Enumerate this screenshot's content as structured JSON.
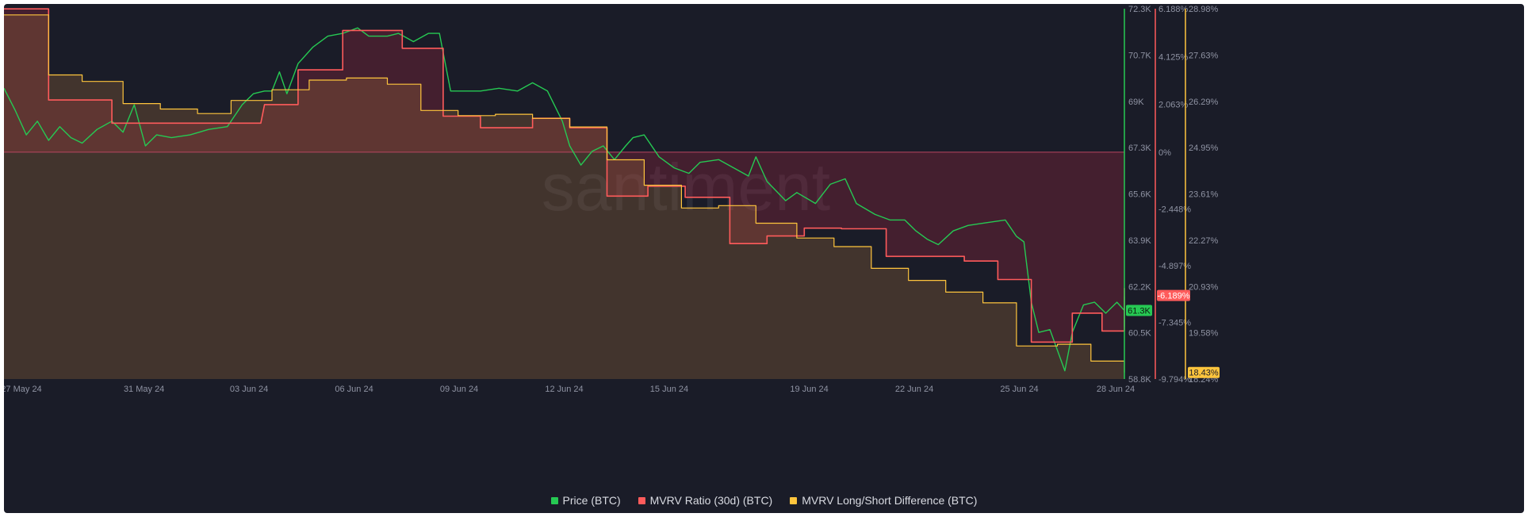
{
  "chart_data": {
    "type": "line",
    "watermark": "santiment",
    "x_tick_labels": [
      "27 May 24",
      "31 May 24",
      "03 Jun 24",
      "06 Jun 24",
      "09 Jun 24",
      "12 Jun 24",
      "15 Jun 24",
      "19 Jun 24",
      "22 Jun 24",
      "25 Jun 24",
      "28 Jun 24"
    ],
    "x_tick_days": [
      0,
      4,
      7,
      10,
      13,
      16,
      19,
      23,
      26,
      29,
      32
    ],
    "x_range_days": [
      0,
      30.1
    ],
    "axes": {
      "price": {
        "ticks": [
          "72.3K",
          "70.7K",
          "69K",
          "67.3K",
          "65.6K",
          "63.9K",
          "62.2K",
          "60.5K",
          "58.8K"
        ],
        "range": [
          58800,
          72300
        ],
        "color": "#26c953"
      },
      "mvrv": {
        "ticks": [
          "6.188%",
          "4.125%",
          "2.063%",
          "0%",
          "-2.448%",
          "-4.897%",
          "-7.345%",
          "-9.794%"
        ],
        "tick_values": [
          6.188,
          4.125,
          2.063,
          0,
          -2.448,
          -4.897,
          -7.345,
          -9.794
        ],
        "color": "#ff5b5b"
      },
      "ls": {
        "ticks": [
          "28.98%",
          "27.63%",
          "26.29%",
          "24.95%",
          "23.61%",
          "22.27%",
          "20.93%",
          "19.58%",
          "18.24%"
        ],
        "range": [
          18.24,
          28.98
        ],
        "color": "#ffc53d"
      }
    },
    "current": {
      "price": "61.3K",
      "mvrv": "-6.189%",
      "ls": "18.43%"
    },
    "series": [
      {
        "name": "Price (BTC)",
        "color": "#26c953",
        "key": "price",
        "points": [
          [
            0,
            69.4
          ],
          [
            0.3,
            68.6
          ],
          [
            0.6,
            67.7
          ],
          [
            0.9,
            68.2
          ],
          [
            1.2,
            67.5
          ],
          [
            1.5,
            68.0
          ],
          [
            1.8,
            67.6
          ],
          [
            2.1,
            67.4
          ],
          [
            2.5,
            67.9
          ],
          [
            2.9,
            68.2
          ],
          [
            3.2,
            67.8
          ],
          [
            3.5,
            68.8
          ],
          [
            3.8,
            67.3
          ],
          [
            4.1,
            67.7
          ],
          [
            4.5,
            67.6
          ],
          [
            5.0,
            67.7
          ],
          [
            5.5,
            67.9
          ],
          [
            6.0,
            68.0
          ],
          [
            6.4,
            68.8
          ],
          [
            6.7,
            69.2
          ],
          [
            7.0,
            69.3
          ],
          [
            7.2,
            69.3
          ],
          [
            7.4,
            70.0
          ],
          [
            7.6,
            69.2
          ],
          [
            7.9,
            70.3
          ],
          [
            8.3,
            70.9
          ],
          [
            8.7,
            71.3
          ],
          [
            9.1,
            71.4
          ],
          [
            9.5,
            71.6
          ],
          [
            9.8,
            71.3
          ],
          [
            10.3,
            71.3
          ],
          [
            10.6,
            71.4
          ],
          [
            11.0,
            71.1
          ],
          [
            11.4,
            71.4
          ],
          [
            11.7,
            71.4
          ],
          [
            12.0,
            69.3
          ],
          [
            12.4,
            69.3
          ],
          [
            12.8,
            69.3
          ],
          [
            13.3,
            69.4
          ],
          [
            13.8,
            69.3
          ],
          [
            14.2,
            69.6
          ],
          [
            14.6,
            69.3
          ],
          [
            15.0,
            68.2
          ],
          [
            15.2,
            67.3
          ],
          [
            15.5,
            66.6
          ],
          [
            15.8,
            67.1
          ],
          [
            16.1,
            67.3
          ],
          [
            16.4,
            66.8
          ],
          [
            16.7,
            67.3
          ],
          [
            16.9,
            67.6
          ],
          [
            17.2,
            67.7
          ],
          [
            17.6,
            66.9
          ],
          [
            18.0,
            66.5
          ],
          [
            18.4,
            66.3
          ],
          [
            18.7,
            66.7
          ],
          [
            19.2,
            66.8
          ],
          [
            19.6,
            66.5
          ],
          [
            20.0,
            66.2
          ],
          [
            20.2,
            66.9
          ],
          [
            20.5,
            66.0
          ],
          [
            21.0,
            65.3
          ],
          [
            21.3,
            65.6
          ],
          [
            21.8,
            65.2
          ],
          [
            22.2,
            65.9
          ],
          [
            22.6,
            66.1
          ],
          [
            22.9,
            65.2
          ],
          [
            23.4,
            64.8
          ],
          [
            23.8,
            64.6
          ],
          [
            24.2,
            64.6
          ],
          [
            24.5,
            64.2
          ],
          [
            24.8,
            63.9
          ],
          [
            25.1,
            63.7
          ],
          [
            25.5,
            64.2
          ],
          [
            25.9,
            64.4
          ],
          [
            26.4,
            64.5
          ],
          [
            26.9,
            64.6
          ],
          [
            27.2,
            64.0
          ],
          [
            27.4,
            63.8
          ],
          [
            27.6,
            61.6
          ],
          [
            27.8,
            60.5
          ],
          [
            28.1,
            60.6
          ],
          [
            28.5,
            59.1
          ],
          [
            28.7,
            60.5
          ],
          [
            29.0,
            61.5
          ],
          [
            29.3,
            61.6
          ],
          [
            29.6,
            61.2
          ],
          [
            29.9,
            61.6
          ],
          [
            30.1,
            61.3
          ],
          [
            30.4,
            61.2
          ],
          [
            30.7,
            61.4
          ],
          [
            31.0,
            61.2
          ],
          [
            31.2,
            60.7
          ],
          [
            31.5,
            61.3
          ],
          [
            31.8,
            61.8
          ],
          [
            32.1,
            61.5
          ],
          [
            32.4,
            61.3
          ],
          [
            32.6,
            61.2
          ],
          [
            32.9,
            61.3
          ],
          [
            33.0,
            61.3
          ]
        ]
      },
      {
        "name": "MVRV Ratio (30d) (BTC)",
        "color": "#ff5b5b",
        "key": "mvrv",
        "points": [
          [
            0,
            6.18
          ],
          [
            1.2,
            6.18
          ],
          [
            1.2,
            2.25
          ],
          [
            2.9,
            2.25
          ],
          [
            2.9,
            1.25
          ],
          [
            6.1,
            1.25
          ],
          [
            6.1,
            1.25
          ],
          [
            6.9,
            1.25
          ],
          [
            7.0,
            2.05
          ],
          [
            7.9,
            2.05
          ],
          [
            7.9,
            3.55
          ],
          [
            9.1,
            3.55
          ],
          [
            9.1,
            5.25
          ],
          [
            10.7,
            5.25
          ],
          [
            10.7,
            4.48
          ],
          [
            11.8,
            4.48
          ],
          [
            11.8,
            1.55
          ],
          [
            12.8,
            1.55
          ],
          [
            12.8,
            1.05
          ],
          [
            14.2,
            1.05
          ],
          [
            14.2,
            1.46
          ],
          [
            15.2,
            1.46
          ],
          [
            15.2,
            1.05
          ],
          [
            16.2,
            1.05
          ],
          [
            16.2,
            -1.9
          ],
          [
            17.3,
            -1.9
          ],
          [
            17.3,
            -1.47
          ],
          [
            18.3,
            -1.47
          ],
          [
            18.3,
            -1.95
          ],
          [
            19.5,
            -1.95
          ],
          [
            19.5,
            -3.95
          ],
          [
            20.5,
            -3.95
          ],
          [
            20.5,
            -3.62
          ],
          [
            21.5,
            -3.62
          ],
          [
            21.5,
            -3.28
          ],
          [
            22.5,
            -3.28
          ],
          [
            22.5,
            -3.31
          ],
          [
            23.7,
            -3.31
          ],
          [
            23.7,
            -4.5
          ],
          [
            25.8,
            -4.5
          ],
          [
            25.8,
            -4.7
          ],
          [
            26.7,
            -4.7
          ],
          [
            26.7,
            -5.5
          ],
          [
            27.6,
            -5.5
          ],
          [
            27.6,
            -8.2
          ],
          [
            28.7,
            -8.2
          ],
          [
            28.7,
            -6.95
          ],
          [
            29.5,
            -6.95
          ],
          [
            29.5,
            -7.72
          ],
          [
            30.5,
            -7.72
          ],
          [
            30.5,
            -5.88
          ],
          [
            31.6,
            -5.88
          ],
          [
            31.6,
            -6.14
          ],
          [
            32.2,
            -6.14
          ],
          [
            32.2,
            -6.19
          ]
        ]
      },
      {
        "name": "MVRV Long/Short Difference (BTC)",
        "color": "#ffc53d",
        "key": "ls",
        "points": [
          [
            0,
            28.8
          ],
          [
            1.2,
            28.8
          ],
          [
            1.2,
            27.06
          ],
          [
            2.1,
            27.06
          ],
          [
            2.1,
            26.87
          ],
          [
            3.2,
            26.87
          ],
          [
            3.2,
            26.23
          ],
          [
            4.2,
            26.23
          ],
          [
            4.2,
            26.07
          ],
          [
            5.2,
            26.07
          ],
          [
            5.2,
            25.94
          ],
          [
            6.1,
            25.94
          ],
          [
            6.1,
            26.32
          ],
          [
            7.2,
            26.32
          ],
          [
            7.2,
            26.63
          ],
          [
            8.2,
            26.63
          ],
          [
            8.2,
            26.91
          ],
          [
            9.2,
            26.91
          ],
          [
            9.2,
            26.97
          ],
          [
            10.3,
            26.97
          ],
          [
            10.3,
            26.79
          ],
          [
            11.2,
            26.79
          ],
          [
            11.2,
            26.03
          ],
          [
            12.2,
            26.03
          ],
          [
            12.2,
            25.88
          ],
          [
            13.2,
            25.88
          ],
          [
            13.2,
            25.92
          ],
          [
            14.2,
            25.92
          ],
          [
            14.2,
            25.8
          ],
          [
            15.2,
            25.8
          ],
          [
            15.2,
            25.55
          ],
          [
            16.2,
            25.55
          ],
          [
            16.2,
            24.6
          ],
          [
            17.2,
            24.6
          ],
          [
            17.2,
            23.86
          ],
          [
            18.2,
            23.86
          ],
          [
            18.2,
            23.2
          ],
          [
            19.2,
            23.2
          ],
          [
            19.2,
            23.27
          ],
          [
            20.2,
            23.27
          ],
          [
            20.2,
            22.76
          ],
          [
            21.3,
            22.76
          ],
          [
            21.3,
            22.33
          ],
          [
            22.3,
            22.33
          ],
          [
            22.3,
            22.08
          ],
          [
            23.3,
            22.08
          ],
          [
            23.3,
            21.45
          ],
          [
            24.3,
            21.45
          ],
          [
            24.3,
            21.1
          ],
          [
            25.3,
            21.1
          ],
          [
            25.3,
            20.76
          ],
          [
            26.3,
            20.76
          ],
          [
            26.3,
            20.45
          ],
          [
            27.2,
            20.45
          ],
          [
            27.2,
            19.2
          ],
          [
            28.3,
            19.2
          ],
          [
            28.3,
            19.25
          ],
          [
            29.2,
            19.25
          ],
          [
            29.2,
            18.76
          ],
          [
            30.2,
            18.76
          ],
          [
            30.2,
            18.65
          ],
          [
            31.1,
            18.65
          ],
          [
            31.1,
            18.5
          ],
          [
            32.2,
            18.5
          ],
          [
            32.2,
            18.43
          ]
        ]
      }
    ],
    "legend_position": "bottom-center",
    "grid": false
  }
}
